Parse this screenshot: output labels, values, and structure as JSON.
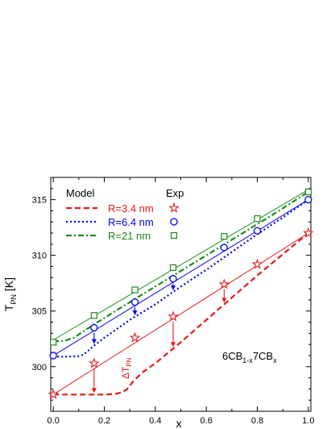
{
  "chart_data": {
    "type": "line",
    "xlabel": "x",
    "ylabel_main": "T",
    "ylabel_sub": "PN",
    "ylabel_unit": " [K]",
    "xlim": [
      -0.01,
      1.01
    ],
    "ylim": [
      296.0,
      317.0
    ],
    "xticks": [
      0.0,
      0.2,
      0.4,
      0.6,
      0.8,
      1.0
    ],
    "xtick_labels": [
      "0.0",
      "0.2",
      "0.4",
      "0.6",
      "0.8",
      "1.0"
    ],
    "yticks": [
      300,
      305,
      310,
      315
    ],
    "ytick_labels": [
      "300",
      "305",
      "310",
      "315"
    ],
    "legend": {
      "model_header": "Model",
      "exp_header": "Exp",
      "position": "top-left"
    },
    "annotation_text": {
      "mixture_a": "6CB",
      "mixture_a_sub": "1-x",
      "mixture_b": "7CB",
      "mixture_b_sub": "x",
      "delta_main": "ΔT",
      "delta_sub": "PN"
    },
    "exp_x": [
      0.0,
      0.16,
      0.32,
      0.47,
      0.67,
      0.8,
      1.0
    ],
    "series": [
      {
        "name": "R=3.4 nm",
        "color": "#e31a1c",
        "dash": "dashed",
        "marker": "star",
        "model_x": [
          0.0,
          0.05,
          0.1,
          0.15,
          0.2,
          0.24,
          0.27,
          0.29,
          0.31,
          0.35,
          0.4,
          0.5,
          0.6,
          0.7,
          0.8,
          0.9,
          1.0
        ],
        "model_y": [
          297.5,
          297.5,
          297.5,
          297.5,
          297.5,
          297.55,
          297.7,
          298.0,
          298.6,
          299.5,
          300.3,
          302.2,
          304.2,
          306.2,
          308.2,
          310.1,
          312.0
        ],
        "exp_y": [
          297.5,
          300.3,
          302.6,
          304.5,
          307.4,
          309.2,
          312.0
        ],
        "fit_y": [
          297.5,
          312.0
        ]
      },
      {
        "name": "R=6.4 nm",
        "color": "#0000ee",
        "dash": "dotted",
        "marker": "circle",
        "model_x": [
          0.0,
          0.05,
          0.1,
          0.12,
          0.14,
          0.16,
          0.2,
          0.3,
          0.4,
          0.5,
          0.6,
          0.7,
          0.8,
          0.9,
          1.0
        ],
        "model_y": [
          300.9,
          300.9,
          300.95,
          301.1,
          301.5,
          301.9,
          302.6,
          304.2,
          305.6,
          307.2,
          308.7,
          310.3,
          311.9,
          313.4,
          315.0
        ],
        "exp_y": [
          301.0,
          303.5,
          305.8,
          307.9,
          310.7,
          312.2,
          315.0
        ],
        "fit_y": [
          301.0,
          315.0
        ]
      },
      {
        "name": "R=21 nm",
        "color": "#1a8a1a",
        "dash": "dashdot",
        "marker": "square",
        "model_x": [
          0.0,
          0.04,
          0.08,
          0.16,
          0.3,
          0.5,
          0.7,
          0.85,
          1.0
        ],
        "model_y": [
          302.3,
          302.3,
          302.6,
          303.8,
          305.8,
          308.6,
          311.4,
          313.5,
          315.7
        ],
        "exp_y": [
          302.2,
          304.6,
          306.9,
          308.9,
          311.7,
          313.3,
          315.7
        ],
        "fit_y": [
          302.4,
          315.9
        ]
      }
    ],
    "arrows": [
      {
        "x": 0.16,
        "from_series": 0,
        "to": "model",
        "series": 0
      },
      {
        "x": 0.47,
        "from_series": 0,
        "to": "model",
        "series": 0
      },
      {
        "x": 0.67,
        "from_series": 0,
        "to": "model",
        "series": 0
      },
      {
        "x": 0.8,
        "from_series": 0,
        "to": "model",
        "series": 0
      },
      {
        "x": 0.16,
        "from_series": 1,
        "to": "model",
        "series": 1
      },
      {
        "x": 0.32,
        "from_series": 1,
        "to": "model",
        "series": 1
      },
      {
        "x": 0.47,
        "from_series": 1,
        "to": "model",
        "series": 1
      },
      {
        "x": 0.67,
        "from_series": 1,
        "to": "model",
        "series": 1
      },
      {
        "x": 0.8,
        "from_series": 1,
        "to": "model",
        "series": 1
      }
    ]
  }
}
